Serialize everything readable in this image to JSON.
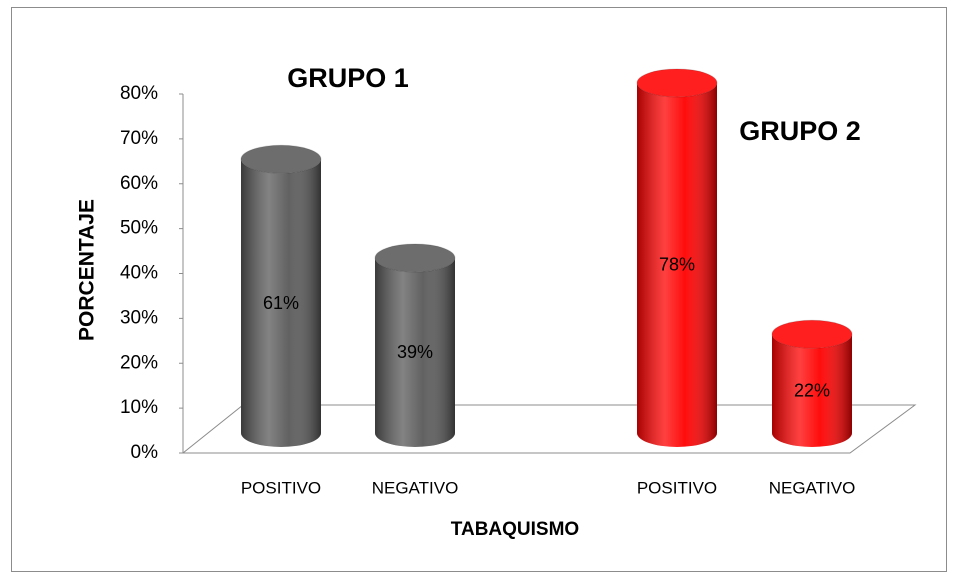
{
  "chart_data": {
    "type": "bar",
    "style": "3d-cylinder",
    "y_label": "PORCENTAJE",
    "x_label": "TABAQUISMO",
    "categories": [
      "POSITIVO",
      "NEGATIVO"
    ],
    "series": [
      {
        "name": "GRUPO 1",
        "color": "#595959",
        "values": [
          61,
          39
        ],
        "value_labels": [
          "61%",
          "39%"
        ]
      },
      {
        "name": "GRUPO  2",
        "color": "#ff0000",
        "values": [
          78,
          22
        ],
        "value_labels": [
          "78%",
          "22%"
        ]
      }
    ],
    "ylim": [
      0,
      80
    ],
    "yticks": [
      {
        "value": 0,
        "label": "0%"
      },
      {
        "value": 10,
        "label": "10%"
      },
      {
        "value": 20,
        "label": "20%"
      },
      {
        "value": 30,
        "label": "30%"
      },
      {
        "value": 40,
        "label": "40%"
      },
      {
        "value": 50,
        "label": "50%"
      },
      {
        "value": 60,
        "label": "60%"
      },
      {
        "value": 70,
        "label": "70%"
      },
      {
        "value": 80,
        "label": "80%"
      }
    ],
    "grid": false
  }
}
